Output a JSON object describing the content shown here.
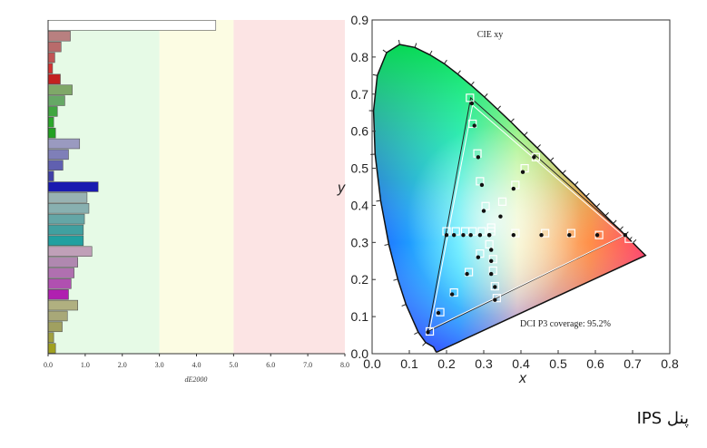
{
  "chart_data": [
    {
      "type": "bar",
      "orientation": "horizontal",
      "xlabel": "dE2000",
      "xlim": [
        0,
        8
      ],
      "xticks": [
        "0.0",
        "1.0",
        "2.0",
        "3.0",
        "4.0",
        "5.0",
        "6.0",
        "7.0",
        "8.0"
      ],
      "zones": [
        {
          "from": 0,
          "to": 3,
          "color": "#e6fae6"
        },
        {
          "from": 3,
          "to": 5,
          "color": "#fcfce3"
        },
        {
          "from": 5,
          "to": 8,
          "color": "#fce4e4"
        }
      ],
      "values": [
        4.52,
        0.6,
        0.35,
        0.18,
        0.12,
        0.33,
        0.65,
        0.45,
        0.25,
        0.15,
        0.2,
        0.85,
        0.55,
        0.4,
        0.15,
        1.35,
        1.05,
        1.1,
        0.98,
        0.95,
        0.95,
        1.18,
        0.8,
        0.7,
        0.62,
        0.55,
        0.8,
        0.52,
        0.38,
        0.15,
        0.2
      ],
      "colors": [
        "#ffffff",
        "#b88080",
        "#b86b6b",
        "#c05555",
        "#d43232",
        "#c42020",
        "#7fa868",
        "#66a866",
        "#40a640",
        "#2aa82a",
        "#22a022",
        "#9a9ac0",
        "#7f7fb8",
        "#6060b0",
        "#4040a8",
        "#1a1ab0",
        "#98b2b2",
        "#88b0b0",
        "#64a6a6",
        "#40a0a0",
        "#20a0a0",
        "#c0a0b8",
        "#b088b0",
        "#b070b0",
        "#b050b0",
        "#b020b0",
        "#b0b080",
        "#a8a878",
        "#a0a060",
        "#a0a040",
        "#a0a020"
      ]
    },
    {
      "type": "scatter",
      "title": "CIE xy",
      "xlabel": "x",
      "ylabel": "y",
      "xlim": [
        0,
        0.8
      ],
      "ylim": [
        0,
        0.9
      ],
      "xticks": [
        "0.0",
        "0.1",
        "0.2",
        "0.3",
        "0.4",
        "0.5",
        "0.6",
        "0.7",
        "0.8"
      ],
      "yticks": [
        "0.0",
        "0.1",
        "0.2",
        "0.3",
        "0.4",
        "0.5",
        "0.6",
        "0.7",
        "0.8",
        "0.9"
      ],
      "annotation": "DCI P3 coverage: 95.2%",
      "triangle_outer": [
        [
          0.68,
          0.32
        ],
        [
          0.265,
          0.69
        ],
        [
          0.15,
          0.06
        ]
      ],
      "triangle_inner": [
        [
          0.675,
          0.318
        ],
        [
          0.27,
          0.67
        ],
        [
          0.155,
          0.065
        ]
      ],
      "targets": [
        [
          0.263,
          0.69
        ],
        [
          0.27,
          0.62
        ],
        [
          0.283,
          0.54
        ],
        [
          0.29,
          0.465
        ],
        [
          0.305,
          0.398
        ],
        [
          0.32,
          0.34
        ],
        [
          0.315,
          0.295
        ],
        [
          0.29,
          0.27
        ],
        [
          0.26,
          0.22
        ],
        [
          0.22,
          0.165
        ],
        [
          0.183,
          0.112
        ],
        [
          0.155,
          0.06
        ],
        [
          0.325,
          0.255
        ],
        [
          0.325,
          0.224
        ],
        [
          0.33,
          0.182
        ],
        [
          0.335,
          0.15
        ],
        [
          0.2,
          0.33
        ],
        [
          0.225,
          0.33
        ],
        [
          0.25,
          0.33
        ],
        [
          0.27,
          0.33
        ],
        [
          0.295,
          0.33
        ],
        [
          0.32,
          0.33
        ],
        [
          0.35,
          0.41
        ],
        [
          0.385,
          0.455
        ],
        [
          0.41,
          0.5
        ],
        [
          0.44,
          0.53
        ],
        [
          0.385,
          0.325
        ],
        [
          0.465,
          0.325
        ],
        [
          0.535,
          0.325
        ],
        [
          0.61,
          0.32
        ],
        [
          0.69,
          0.31
        ]
      ],
      "measured": [
        [
          0.268,
          0.675
        ],
        [
          0.275,
          0.615
        ],
        [
          0.285,
          0.53
        ],
        [
          0.295,
          0.455
        ],
        [
          0.3,
          0.385
        ],
        [
          0.315,
          0.32
        ],
        [
          0.32,
          0.28
        ],
        [
          0.285,
          0.26
        ],
        [
          0.255,
          0.215
        ],
        [
          0.215,
          0.16
        ],
        [
          0.178,
          0.11
        ],
        [
          0.15,
          0.058
        ],
        [
          0.32,
          0.25
        ],
        [
          0.32,
          0.215
        ],
        [
          0.33,
          0.18
        ],
        [
          0.33,
          0.145
        ],
        [
          0.2,
          0.32
        ],
        [
          0.22,
          0.32
        ],
        [
          0.245,
          0.32
        ],
        [
          0.265,
          0.32
        ],
        [
          0.29,
          0.32
        ],
        [
          0.315,
          0.32
        ],
        [
          0.345,
          0.37
        ],
        [
          0.38,
          0.445
        ],
        [
          0.405,
          0.49
        ],
        [
          0.435,
          0.53
        ],
        [
          0.38,
          0.32
        ],
        [
          0.455,
          0.32
        ],
        [
          0.53,
          0.32
        ],
        [
          0.605,
          0.32
        ],
        [
          0.68,
          0.32
        ]
      ]
    }
  ],
  "caption": "پنل IPS"
}
